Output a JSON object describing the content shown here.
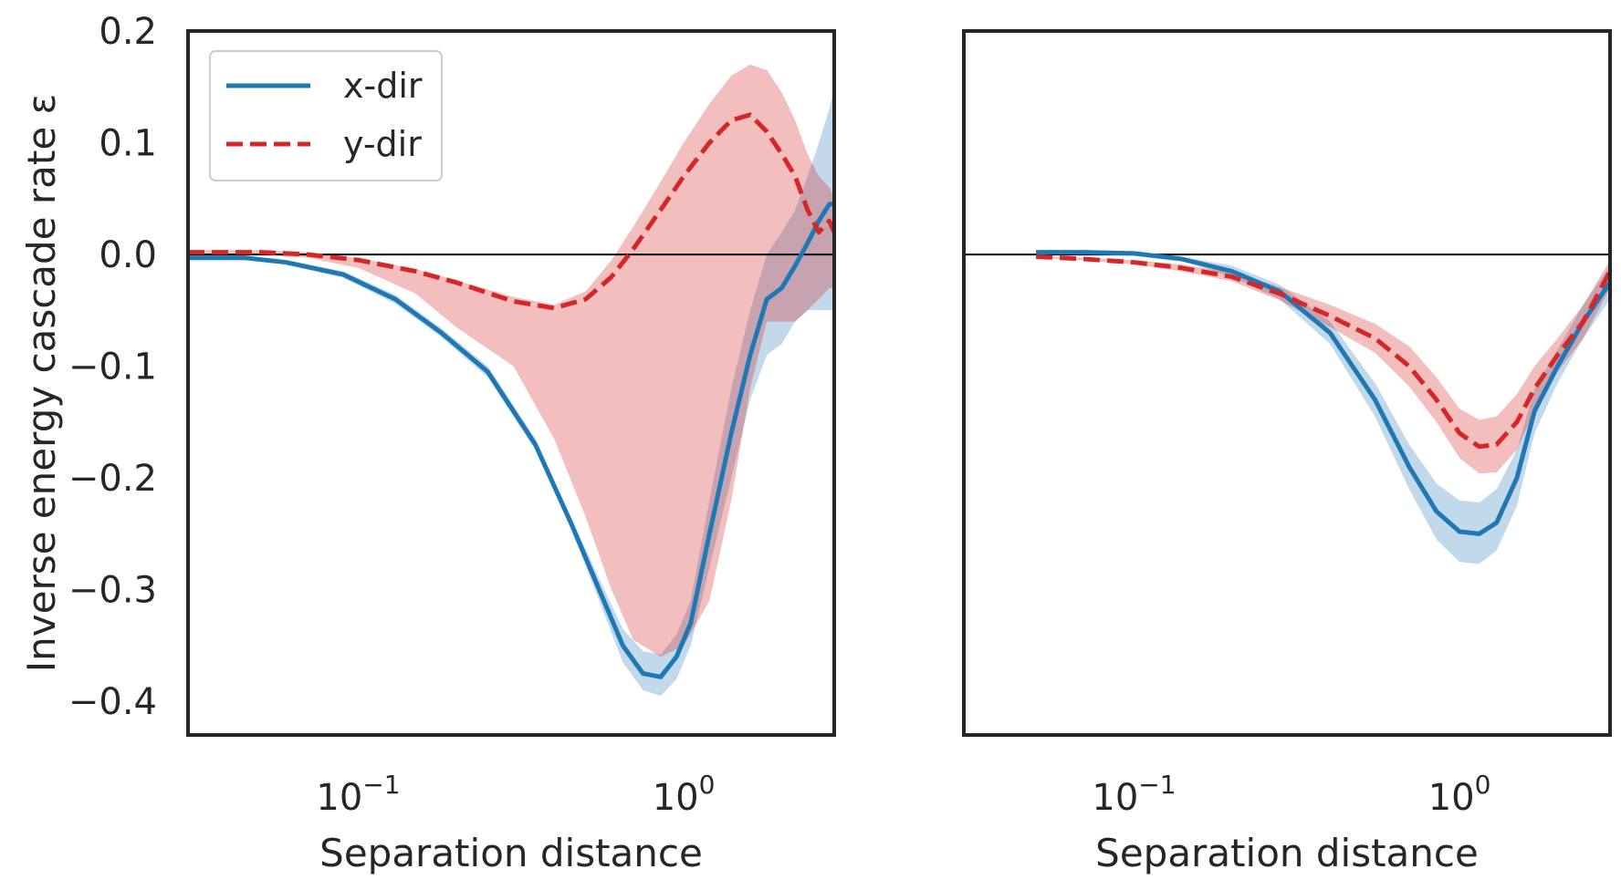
{
  "chart_data": [
    {
      "type": "line",
      "panel": "left",
      "xlabel": "Separation distance",
      "ylabel": "Inverse energy cascade rate ε",
      "xscale": "log",
      "xlim": [
        0.03,
        2.9
      ],
      "ylim": [
        -0.43,
        0.2
      ],
      "xticks": [
        {
          "value": 0.1,
          "base": "10",
          "exp": "−1"
        },
        {
          "value": 1,
          "base": "10",
          "exp": "0"
        }
      ],
      "yticks": [
        {
          "value": 0.2,
          "label": "0.2"
        },
        {
          "value": 0.1,
          "label": "0.1"
        },
        {
          "value": 0.0,
          "label": "0.0"
        },
        {
          "value": -0.1,
          "label": "−0.1"
        },
        {
          "value": -0.2,
          "label": "−0.2"
        },
        {
          "value": -0.3,
          "label": "−0.3"
        },
        {
          "value": -0.4,
          "label": "−0.4"
        }
      ],
      "zero_line": true,
      "grid": false,
      "legend": {
        "position": "top-left",
        "entries": [
          "x-dir",
          "y-dir"
        ]
      },
      "series": [
        {
          "name": "x-dir",
          "color": "#1f77b4",
          "style": "solid",
          "x": [
            0.03,
            0.045,
            0.06,
            0.09,
            0.13,
            0.18,
            0.25,
            0.35,
            0.45,
            0.55,
            0.65,
            0.75,
            0.85,
            0.95,
            1.05,
            1.2,
            1.4,
            1.6,
            1.8,
            2.0,
            2.2,
            2.4,
            2.6,
            2.8,
            2.9
          ],
          "y": [
            -0.003,
            -0.003,
            -0.007,
            -0.018,
            -0.04,
            -0.07,
            -0.105,
            -0.17,
            -0.24,
            -0.3,
            -0.35,
            -0.375,
            -0.378,
            -0.36,
            -0.33,
            -0.25,
            -0.16,
            -0.09,
            -0.04,
            -0.03,
            -0.01,
            0.01,
            0.03,
            0.045,
            0.045
          ],
          "band_upper": [
            -0.001,
            -0.001,
            -0.005,
            -0.015,
            -0.036,
            -0.066,
            -0.1,
            -0.165,
            -0.235,
            -0.29,
            -0.335,
            -0.355,
            -0.358,
            -0.34,
            -0.31,
            -0.22,
            -0.12,
            -0.05,
            0.0,
            0.02,
            0.04,
            0.07,
            0.1,
            0.13,
            0.15
          ],
          "band_lower": [
            -0.005,
            -0.005,
            -0.009,
            -0.021,
            -0.044,
            -0.074,
            -0.11,
            -0.175,
            -0.245,
            -0.31,
            -0.365,
            -0.39,
            -0.395,
            -0.38,
            -0.35,
            -0.28,
            -0.2,
            -0.13,
            -0.09,
            -0.08,
            -0.06,
            -0.05,
            -0.05,
            -0.05,
            -0.05
          ]
        },
        {
          "name": "y-dir",
          "color": "#d62728",
          "style": "dashed",
          "x": [
            0.03,
            0.05,
            0.07,
            0.1,
            0.15,
            0.2,
            0.3,
            0.4,
            0.5,
            0.6,
            0.7,
            0.85,
            1.0,
            1.2,
            1.4,
            1.6,
            1.8,
            2.0,
            2.2,
            2.4,
            2.6,
            2.8,
            2.9
          ],
          "y": [
            0.002,
            0.002,
            0.0,
            -0.005,
            -0.015,
            -0.025,
            -0.042,
            -0.048,
            -0.04,
            -0.02,
            0.005,
            0.04,
            0.07,
            0.1,
            0.12,
            0.125,
            0.11,
            0.09,
            0.07,
            0.04,
            0.02,
            0.03,
            0.02
          ],
          "band_upper": [
            0.004,
            0.004,
            0.002,
            -0.003,
            -0.013,
            -0.023,
            -0.038,
            -0.045,
            -0.033,
            -0.005,
            0.025,
            0.065,
            0.1,
            0.135,
            0.16,
            0.17,
            0.165,
            0.145,
            0.12,
            0.09,
            0.07,
            0.06,
            0.05
          ],
          "band_lower": [
            0.0,
            0.0,
            -0.003,
            -0.012,
            -0.035,
            -0.065,
            -0.1,
            -0.165,
            -0.235,
            -0.3,
            -0.345,
            -0.36,
            -0.35,
            -0.31,
            -0.22,
            -0.12,
            -0.06,
            -0.06,
            -0.06,
            -0.05,
            -0.04,
            -0.03,
            -0.03
          ]
        }
      ]
    },
    {
      "type": "line",
      "panel": "right",
      "xlabel": "Separation distance",
      "ylabel": "",
      "xscale": "log",
      "xlim": [
        0.03,
        2.9
      ],
      "ylim": [
        -0.43,
        0.2
      ],
      "xticks": [
        {
          "value": 0.1,
          "base": "10",
          "exp": "−1"
        },
        {
          "value": 1,
          "base": "10",
          "exp": "0"
        }
      ],
      "yticks": [],
      "zero_line": true,
      "grid": false,
      "series": [
        {
          "name": "x-dir",
          "color": "#1f77b4",
          "style": "solid",
          "x": [
            0.05,
            0.07,
            0.1,
            0.14,
            0.2,
            0.28,
            0.4,
            0.55,
            0.7,
            0.85,
            1.0,
            1.15,
            1.3,
            1.5,
            1.7,
            2.0,
            2.4,
            2.9
          ],
          "y": [
            0.002,
            0.002,
            0.001,
            -0.004,
            -0.015,
            -0.033,
            -0.07,
            -0.13,
            -0.19,
            -0.23,
            -0.248,
            -0.25,
            -0.24,
            -0.2,
            -0.14,
            -0.1,
            -0.06,
            -0.025
          ],
          "band_upper": [
            0.003,
            0.003,
            0.002,
            -0.002,
            -0.01,
            -0.027,
            -0.06,
            -0.115,
            -0.17,
            -0.205,
            -0.22,
            -0.222,
            -0.21,
            -0.175,
            -0.12,
            -0.085,
            -0.045,
            -0.01
          ],
          "band_lower": [
            0.001,
            0.001,
            0.0,
            -0.006,
            -0.02,
            -0.04,
            -0.08,
            -0.145,
            -0.21,
            -0.255,
            -0.275,
            -0.277,
            -0.265,
            -0.225,
            -0.16,
            -0.115,
            -0.075,
            -0.04
          ]
        },
        {
          "name": "y-dir",
          "color": "#d62728",
          "style": "dashed",
          "x": [
            0.05,
            0.07,
            0.1,
            0.14,
            0.2,
            0.28,
            0.4,
            0.55,
            0.7,
            0.85,
            1.0,
            1.15,
            1.3,
            1.5,
            1.7,
            2.0,
            2.4,
            2.9
          ],
          "y": [
            -0.002,
            -0.004,
            -0.007,
            -0.012,
            -0.02,
            -0.035,
            -0.055,
            -0.075,
            -0.1,
            -0.13,
            -0.16,
            -0.172,
            -0.17,
            -0.15,
            -0.12,
            -0.09,
            -0.06,
            -0.015
          ],
          "band_upper": [
            -0.001,
            -0.003,
            -0.005,
            -0.009,
            -0.016,
            -0.029,
            -0.045,
            -0.062,
            -0.082,
            -0.11,
            -0.138,
            -0.148,
            -0.145,
            -0.125,
            -0.1,
            -0.075,
            -0.045,
            -0.005
          ],
          "band_lower": [
            -0.003,
            -0.005,
            -0.009,
            -0.015,
            -0.024,
            -0.041,
            -0.065,
            -0.088,
            -0.118,
            -0.15,
            -0.182,
            -0.196,
            -0.195,
            -0.175,
            -0.14,
            -0.105,
            -0.075,
            -0.03
          ]
        }
      ]
    }
  ]
}
